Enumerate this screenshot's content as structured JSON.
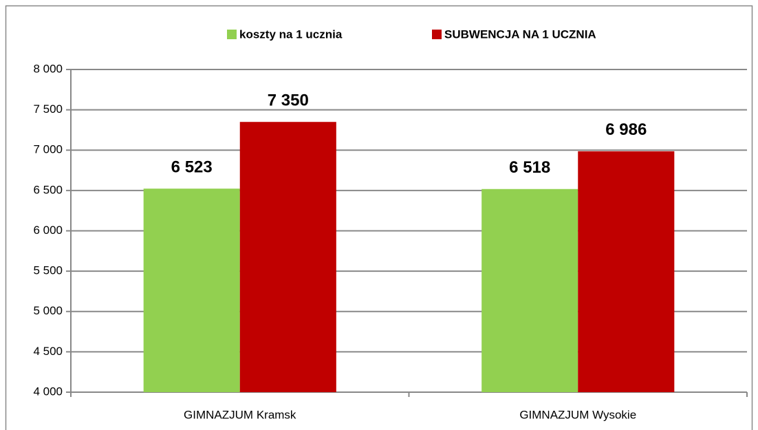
{
  "chart_data": {
    "type": "bar",
    "categories": [
      "GIMNAZJUM  Kramsk",
      "GIMNAZJUM  Wysokie"
    ],
    "series": [
      {
        "name": "koszty na 1 ucznia",
        "color": "#92d050",
        "values": [
          6523,
          6518
        ],
        "value_labels": [
          "6 523",
          "6 518"
        ]
      },
      {
        "name": "SUBWENCJA NA 1 UCZNIA",
        "color": "#c00000",
        "values": [
          7350,
          6986
        ],
        "value_labels": [
          "7 350",
          "6 986"
        ]
      }
    ],
    "ylim": [
      4000,
      8000
    ],
    "yticks": [
      {
        "value": 4000,
        "label": "4 000"
      },
      {
        "value": 4500,
        "label": "4 500"
      },
      {
        "value": 5000,
        "label": "5 000"
      },
      {
        "value": 5500,
        "label": "5 500"
      },
      {
        "value": 6000,
        "label": "6 000"
      },
      {
        "value": 6500,
        "label": "6 500"
      },
      {
        "value": 7000,
        "label": "7 000"
      },
      {
        "value": 7500,
        "label": "7 500"
      },
      {
        "value": 8000,
        "label": "8 000"
      }
    ],
    "grid": true,
    "legend": "top"
  }
}
